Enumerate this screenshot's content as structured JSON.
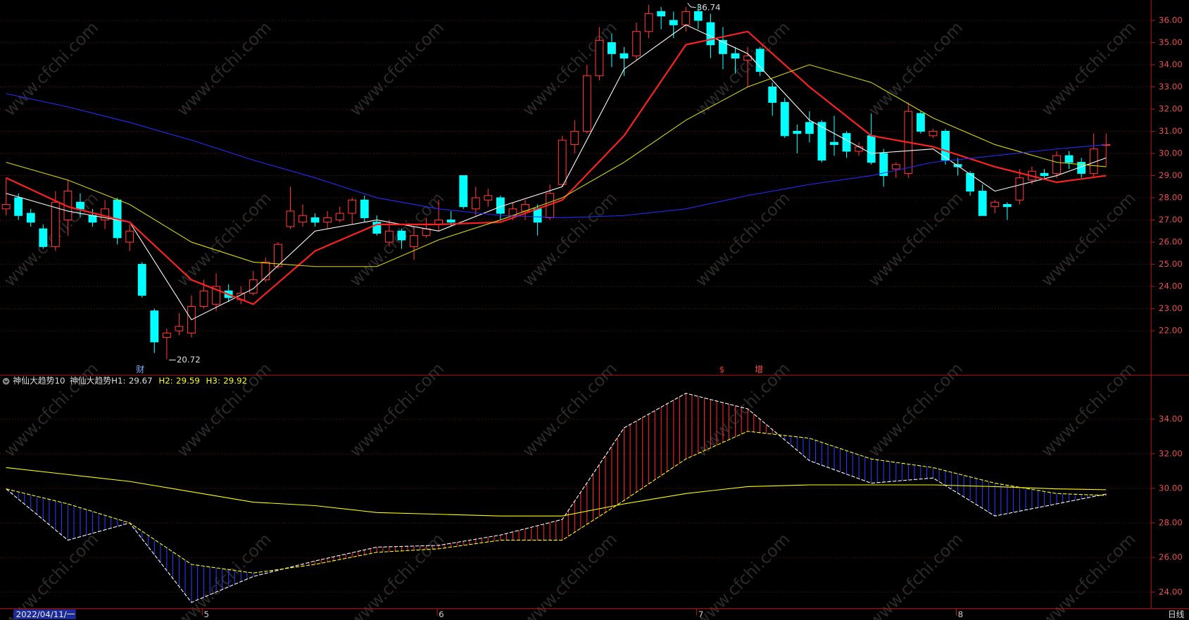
{
  "watermark": "www.cfchi.com",
  "period": "日线",
  "markers": [
    "财",
    "$",
    "增"
  ],
  "chart_data": [
    {
      "type": "candlestick",
      "categories": [
        "2022/04/11/一",
        null,
        null,
        null,
        null,
        null,
        null,
        null,
        null,
        null,
        null,
        null,
        null,
        null,
        null,
        null,
        "5",
        null,
        null,
        null,
        null,
        null,
        null,
        null,
        null,
        null,
        null,
        null,
        null,
        null,
        null,
        null,
        null,
        null,
        null,
        "6",
        null,
        null,
        null,
        null,
        null,
        null,
        null,
        null,
        null,
        null,
        null,
        null,
        null,
        null,
        null,
        null,
        null,
        null,
        null,
        null,
        "7",
        null,
        null,
        null,
        null,
        null,
        null,
        null,
        null,
        null,
        null,
        null,
        null,
        null,
        null,
        null,
        null,
        null,
        null,
        null,
        null,
        "8",
        null,
        null,
        null,
        null,
        null,
        null,
        null,
        null,
        null,
        null,
        null,
        null
      ],
      "open": [
        27.5,
        28.0,
        27.3,
        26.6,
        25.8,
        27.0,
        27.8,
        27.2,
        27.0,
        27.9,
        26.0,
        25.0,
        22.9,
        21.7,
        22.0,
        21.9,
        23.1,
        23.2,
        23.8,
        23.4,
        23.7,
        24.3,
        24.9,
        26.7,
        26.9,
        27.1,
        26.9,
        27.0,
        27.3,
        27.9,
        26.9,
        26.0,
        26.5,
        25.8,
        26.3,
        26.8,
        27.0,
        29.0,
        27.5,
        27.9,
        28.0,
        27.2,
        27.4,
        27.5,
        27.1,
        28.6,
        30.4,
        31.0,
        33.5,
        35.0,
        34.5,
        34.4,
        35.5,
        36.4,
        36.0,
        35.8,
        36.4,
        35.9,
        35.1,
        34.5,
        34.2,
        34.7,
        33.0,
        32.3,
        31.0,
        31.4,
        31.4,
        30.5,
        30.9,
        30.1,
        30.8,
        30.0,
        29.3,
        29.1,
        31.8,
        30.8,
        31.0,
        29.5,
        29.1,
        28.3,
        27.6,
        27.7,
        27.9,
        28.8,
        29.1,
        29.1,
        29.9,
        29.6,
        29.1,
        30.4
      ],
      "high": [
        28.9,
        28.2,
        27.5,
        26.8,
        28.3,
        28.8,
        28.2,
        27.5,
        27.9,
        28.0,
        26.8,
        25.1,
        23.0,
        22.1,
        22.8,
        23.6,
        24.3,
        24.6,
        24.1,
        24.0,
        24.7,
        25.3,
        26.0,
        28.5,
        27.7,
        27.3,
        27.4,
        27.6,
        28.0,
        28.1,
        27.2,
        27.0,
        26.6,
        26.7,
        27.1,
        27.9,
        27.4,
        29.0,
        28.5,
        28.4,
        28.1,
        27.8,
        27.9,
        27.7,
        28.6,
        30.8,
        31.5,
        34.0,
        35.7,
        35.4,
        34.8,
        35.9,
        36.7,
        36.6,
        36.4,
        36.6,
        36.74,
        36.3,
        35.7,
        34.8,
        34.8,
        34.8,
        33.2,
        32.5,
        31.3,
        31.9,
        31.5,
        31.7,
        31.0,
        30.5,
        31.8,
        30.2,
        29.6,
        32.3,
        31.9,
        31.1,
        31.1,
        29.8,
        29.2,
        28.6,
        27.9,
        27.8,
        29.3,
        29.4,
        29.3,
        30.1,
        30.1,
        29.8,
        30.9,
        30.9
      ],
      "low": [
        27.2,
        27.0,
        26.7,
        25.7,
        25.6,
        26.3,
        27.1,
        26.7,
        26.6,
        25.9,
        25.6,
        23.5,
        21.0,
        20.72,
        21.8,
        21.7,
        23.0,
        22.9,
        23.3,
        23.2,
        23.6,
        24.2,
        24.8,
        26.6,
        26.7,
        26.7,
        26.6,
        26.9,
        26.8,
        26.9,
        26.3,
        25.8,
        25.7,
        25.2,
        26.2,
        26.5,
        26.7,
        27.5,
        27.2,
        27.6,
        27.0,
        27.0,
        27.0,
        26.3,
        27.0,
        28.5,
        30.0,
        30.9,
        33.3,
        33.9,
        33.5,
        34.2,
        35.2,
        35.6,
        35.2,
        35.5,
        35.6,
        34.3,
        33.8,
        33.6,
        33.0,
        33.5,
        31.7,
        30.7,
        30.0,
        30.5,
        29.6,
        29.9,
        29.8,
        29.9,
        29.5,
        28.5,
        28.9,
        28.9,
        30.9,
        30.7,
        29.5,
        29.0,
        28.1,
        27.2,
        27.3,
        27.0,
        27.7,
        28.6,
        28.8,
        28.9,
        29.3,
        28.9,
        28.9,
        29.4
      ],
      "close": [
        27.7,
        27.2,
        26.9,
        25.8,
        27.8,
        28.3,
        27.5,
        26.9,
        27.5,
        26.2,
        26.5,
        23.6,
        21.5,
        21.9,
        22.2,
        23.1,
        23.8,
        24.0,
        23.5,
        23.7,
        24.3,
        25.1,
        25.9,
        27.4,
        27.2,
        26.9,
        27.1,
        27.3,
        27.9,
        27.1,
        26.4,
        26.5,
        26.1,
        26.3,
        26.6,
        27.0,
        26.9,
        27.6,
        28.0,
        28.1,
        27.3,
        27.5,
        27.7,
        26.9,
        28.2,
        30.6,
        31.0,
        33.5,
        35.1,
        34.5,
        34.3,
        35.5,
        36.3,
        36.2,
        35.8,
        36.4,
        36.0,
        34.9,
        34.5,
        34.3,
        34.4,
        33.7,
        32.3,
        30.8,
        30.9,
        30.9,
        29.7,
        30.4,
        30.1,
        30.3,
        29.6,
        29.0,
        29.5,
        31.9,
        31.0,
        31.0,
        29.7,
        29.4,
        28.3,
        27.2,
        27.8,
        27.6,
        28.9,
        29.2,
        29.0,
        29.9,
        29.6,
        29.1,
        30.2,
        30.4
      ],
      "up_color": "#ff3232",
      "down_color": "#00ffff",
      "ylim": [
        20,
        36.92
      ],
      "yticks": [
        {
          "value": 22,
          "label": "22.00"
        },
        {
          "value": 23,
          "label": "23.00"
        },
        {
          "value": 24,
          "label": "24.00"
        },
        {
          "value": 25,
          "label": "25.00"
        },
        {
          "value": 26,
          "label": "26.00"
        },
        {
          "value": 27,
          "label": "27.00"
        },
        {
          "value": 28,
          "label": "28.00"
        },
        {
          "value": 29,
          "label": "29.00"
        },
        {
          "value": 30,
          "label": "30.00"
        },
        {
          "value": 31,
          "label": "31.00"
        },
        {
          "value": 32,
          "label": "32.00"
        },
        {
          "value": 33,
          "label": "33.00"
        },
        {
          "value": 34,
          "label": "34.00"
        },
        {
          "value": 35,
          "label": "35.00"
        },
        {
          "value": 36,
          "label": "36.00"
        }
      ],
      "grid": true,
      "overlays": [
        {
          "color": "#ffffff",
          "x": [
            0,
            5,
            10,
            15,
            20,
            25,
            30,
            35,
            40,
            45,
            50,
            55,
            60,
            65,
            70,
            75,
            80,
            85,
            89
          ],
          "values": [
            28.2,
            27.4,
            26.9,
            22.5,
            23.9,
            26.5,
            27.0,
            26.5,
            27.6,
            28.5,
            33.8,
            35.8,
            34.5,
            31.5,
            30.0,
            30.2,
            28.3,
            29.0,
            29.8
          ]
        },
        {
          "color": "#ff2020",
          "x": [
            0,
            5,
            10,
            15,
            20,
            25,
            30,
            35,
            40,
            45,
            50,
            55,
            60,
            65,
            70,
            75,
            80,
            85,
            89
          ],
          "values": [
            28.9,
            27.6,
            26.9,
            24.3,
            23.2,
            25.6,
            26.8,
            26.8,
            26.9,
            27.9,
            30.8,
            34.9,
            35.5,
            33.0,
            30.8,
            30.3,
            29.4,
            28.7,
            29.0
          ]
        },
        {
          "color": "#d8d800",
          "x": [
            0,
            5,
            10,
            15,
            20,
            25,
            30,
            35,
            40,
            45,
            50,
            55,
            60,
            65,
            70,
            75,
            80,
            85,
            89
          ],
          "values": [
            29.6,
            28.8,
            27.7,
            26.0,
            25.1,
            24.9,
            24.9,
            26.1,
            27.0,
            28.0,
            29.6,
            31.5,
            33.0,
            34.0,
            33.2,
            31.6,
            30.4,
            29.6,
            29.4
          ]
        },
        {
          "color": "#2828ff",
          "x": [
            0,
            5,
            10,
            15,
            20,
            25,
            30,
            35,
            40,
            45,
            50,
            55,
            60,
            65,
            70,
            75,
            80,
            85,
            89
          ],
          "values": [
            32.7,
            32.1,
            31.4,
            30.6,
            29.7,
            28.9,
            28.0,
            27.5,
            27.2,
            27.1,
            27.2,
            27.5,
            28.1,
            28.6,
            29.0,
            29.6,
            29.9,
            30.2,
            30.4
          ]
        }
      ]
    },
    {
      "type": "line",
      "title": "神仙大趋势10",
      "ylim": [
        23.04,
        36.46
      ],
      "yticks": [
        {
          "value": 24,
          "label": "24.00"
        },
        {
          "value": 26,
          "label": "26.00"
        },
        {
          "value": 28,
          "label": "28.00"
        },
        {
          "value": 30,
          "label": "30.00"
        },
        {
          "value": 32,
          "label": "32.00"
        },
        {
          "value": 34,
          "label": "34.00"
        }
      ],
      "grid": true,
      "x": [
        0,
        5,
        10,
        15,
        20,
        25,
        30,
        35,
        40,
        45,
        50,
        55,
        60,
        65,
        70,
        75,
        80,
        85,
        89
      ],
      "series": [
        {
          "name": "神仙大趋势H1:",
          "color": "#ffffff",
          "values": [
            29.97,
            27.0,
            28.0,
            23.4,
            24.9,
            25.8,
            26.6,
            26.7,
            27.3,
            28.2,
            33.5,
            35.5,
            34.6,
            31.6,
            30.3,
            30.6,
            28.4,
            29.1,
            29.67
          ]
        },
        {
          "name": "H2:",
          "color": "#ffff00",
          "values": [
            29.97,
            29.1,
            28.0,
            25.6,
            25.1,
            25.6,
            26.3,
            26.5,
            27.0,
            27.0,
            29.3,
            31.7,
            33.3,
            32.9,
            31.7,
            31.2,
            30.3,
            29.7,
            29.59
          ]
        },
        {
          "name": "H3:",
          "color": "#ffff00",
          "values": [
            31.2,
            30.8,
            30.4,
            29.8,
            29.2,
            29.0,
            28.6,
            28.5,
            28.4,
            28.4,
            29.1,
            29.7,
            30.1,
            30.2,
            30.2,
            30.2,
            30.1,
            29.97,
            29.92
          ]
        }
      ],
      "fill_up_color": "#ff2020",
      "fill_down_color": "#2838ff"
    }
  ]
}
